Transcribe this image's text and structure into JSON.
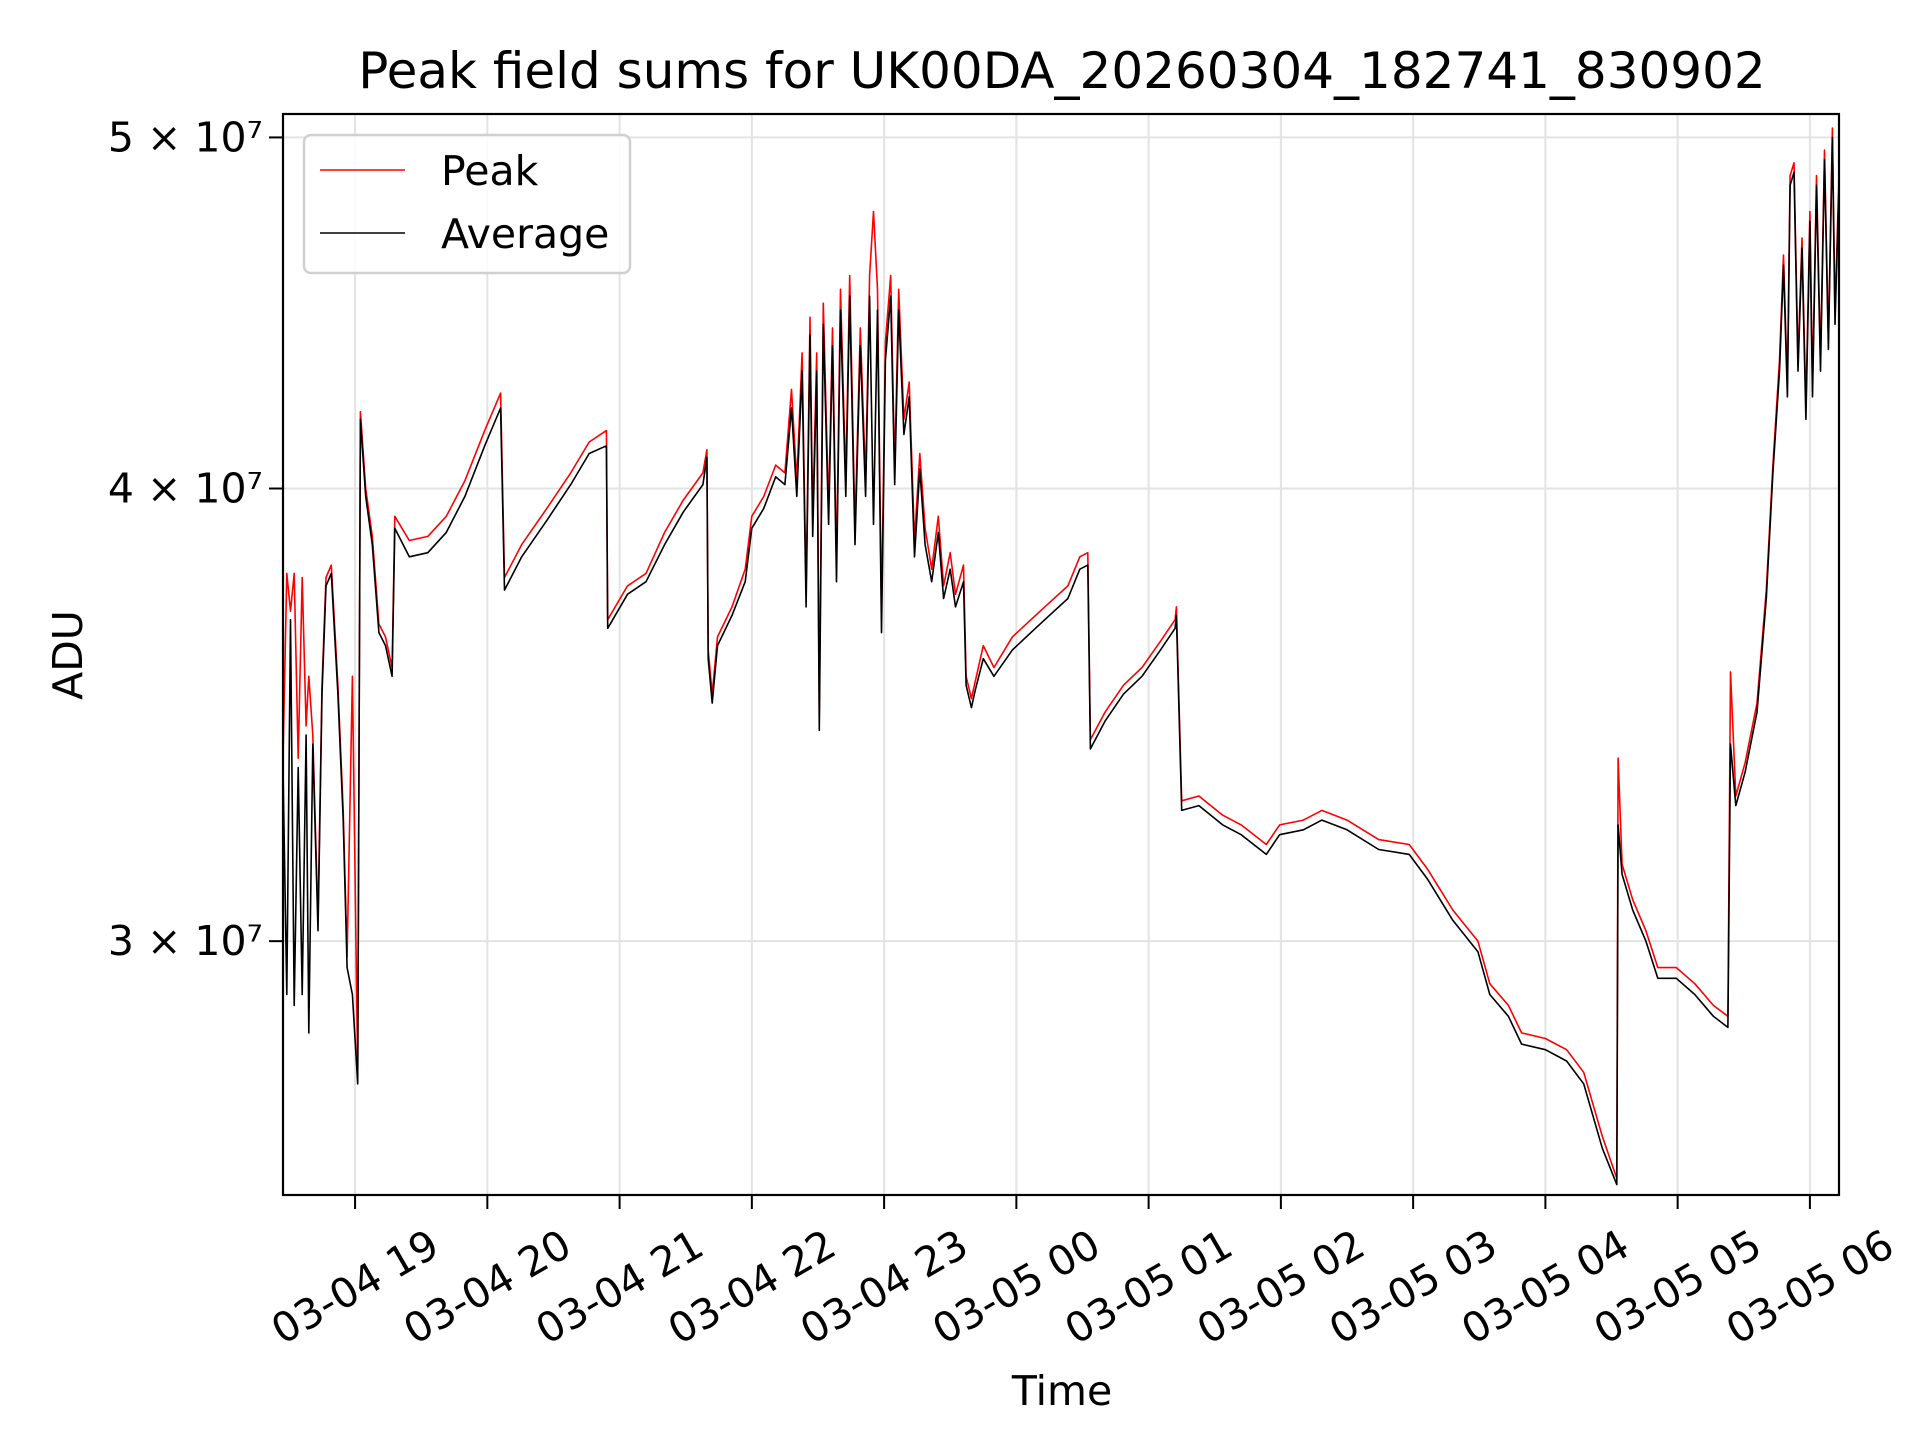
{
  "chart_data": {
    "type": "line",
    "title": "Peak field sums for UK00DA_20260304_182741_830902",
    "xlabel": "Time",
    "ylabel": "ADU",
    "yscale": "log",
    "xlim": [
      18.455,
      30.22
    ],
    "ylim": [
      25530000.0,
      50750000.0
    ],
    "grid": true,
    "legend_position": "top-left",
    "x_ticks": [
      {
        "value": 19,
        "label": "03-04 19"
      },
      {
        "value": 20,
        "label": "03-04 20"
      },
      {
        "value": 21,
        "label": "03-04 21"
      },
      {
        "value": 22,
        "label": "03-04 22"
      },
      {
        "value": 23,
        "label": "03-04 23"
      },
      {
        "value": 24,
        "label": "03-05 00"
      },
      {
        "value": 25,
        "label": "03-05 01"
      },
      {
        "value": 26,
        "label": "03-05 02"
      },
      {
        "value": 27,
        "label": "03-05 03"
      },
      {
        "value": 28,
        "label": "03-05 04"
      },
      {
        "value": 29,
        "label": "03-05 05"
      },
      {
        "value": 30,
        "label": "03-05 06"
      }
    ],
    "y_ticks": [
      {
        "value": 50000000.0,
        "label": "5 × 10⁷"
      },
      {
        "value": 40000000.0,
        "label": "4 × 10⁷"
      },
      {
        "value": 30000000.0,
        "label": "3 × 10⁷"
      }
    ],
    "x": [
      18.455,
      18.484,
      18.512,
      18.54,
      18.57,
      18.6,
      18.63,
      18.65,
      18.68,
      18.72,
      18.75,
      18.78,
      18.82,
      18.87,
      18.91,
      18.94,
      18.98,
      19.02,
      19.04,
      19.08,
      19.13,
      19.18,
      19.23,
      19.28,
      19.3,
      19.41,
      19.55,
      19.69,
      19.83,
      19.98,
      20.1,
      20.13,
      20.26,
      20.45,
      20.63,
      20.77,
      20.9,
      20.91,
      21.06,
      21.2,
      21.34,
      21.48,
      21.63,
      21.66,
      21.67,
      21.7,
      21.74,
      21.85,
      21.95,
      22.0,
      22.09,
      22.18,
      22.25,
      22.3,
      22.34,
      22.38,
      22.41,
      22.44,
      22.46,
      22.49,
      22.51,
      22.54,
      22.58,
      22.61,
      22.64,
      22.67,
      22.71,
      22.74,
      22.78,
      22.82,
      22.86,
      22.89,
      22.92,
      22.95,
      22.98,
      23.01,
      23.05,
      23.08,
      23.11,
      23.15,
      23.19,
      23.23,
      23.27,
      23.31,
      23.36,
      23.41,
      23.45,
      23.5,
      23.54,
      23.6,
      23.62,
      23.66,
      23.69,
      23.75,
      23.83,
      23.97,
      24.11,
      24.25,
      24.39,
      24.48,
      24.54,
      24.56,
      24.67,
      24.81,
      24.95,
      25.09,
      25.2,
      25.21,
      25.25,
      25.38,
      25.56,
      25.7,
      25.89,
      25.99,
      26.17,
      26.31,
      26.5,
      26.74,
      26.97,
      27.11,
      27.3,
      27.49,
      27.58,
      27.72,
      27.82,
      28.0,
      28.16,
      28.29,
      28.43,
      28.54,
      28.55,
      28.58,
      28.66,
      28.76,
      28.85,
      28.99,
      29.13,
      29.27,
      29.38,
      29.4,
      29.44,
      29.51,
      29.6,
      29.67,
      29.72,
      29.77,
      29.8,
      29.83,
      29.85,
      29.88,
      29.91,
      29.94,
      29.97,
      30.0,
      30.02,
      30.05,
      30.08,
      30.11,
      30.14,
      30.17,
      30.19,
      30.22
    ],
    "series": [
      {
        "name": "Peak",
        "color": "#ff0000",
        "values": [
          33700000.0,
          37900000.0,
          37000000.0,
          37900000.0,
          33700000.0,
          37800000.0,
          34400000.0,
          35500000.0,
          34200000.0,
          30400000.0,
          35300000.0,
          37800000.0,
          38100000.0,
          35300000.0,
          32600000.0,
          29700000.0,
          35500000.0,
          27600000.0,
          42000000.0,
          40000000.0,
          38800000.0,
          36700000.0,
          36400000.0,
          35700000.0,
          39300000.0,
          38700000.0,
          38800000.0,
          39300000.0,
          40200000.0,
          41500000.0,
          42500000.0,
          37800000.0,
          38600000.0,
          39500000.0,
          40400000.0,
          41200000.0,
          41500000.0,
          36800000.0,
          37600000.0,
          37900000.0,
          38900000.0,
          39700000.0,
          40400000.0,
          41000000.0,
          36100000.0,
          35100000.0,
          36400000.0,
          37100000.0,
          38000000.0,
          39300000.0,
          39800000.0,
          40600000.0,
          40400000.0,
          42600000.0,
          40200000.0,
          43600000.0,
          37500000.0,
          44600000.0,
          39200000.0,
          43600000.0,
          34700000.0,
          45000000.0,
          39500000.0,
          44300000.0,
          38100000.0,
          45400000.0,
          40200000.0,
          45800000.0,
          39000000.0,
          44300000.0,
          40200000.0,
          45800000.0,
          47700000.0,
          45400000.0,
          36900000.0,
          43900000.0,
          45800000.0,
          40500000.0,
          45400000.0,
          41800000.0,
          42800000.0,
          38700000.0,
          40900000.0,
          39000000.0,
          38000000.0,
          39300000.0,
          37600000.0,
          38400000.0,
          37400000.0,
          38100000.0,
          35500000.0,
          35000000.0,
          35400000.0,
          36200000.0,
          35700000.0,
          36400000.0,
          36800000.0,
          37200000.0,
          37600000.0,
          38300000.0,
          38400000.0,
          34100000.0,
          34700000.0,
          35300000.0,
          35700000.0,
          36300000.0,
          36800000.0,
          37100000.0,
          32800000.0,
          32900000.0,
          32500000.0,
          32300000.0,
          31900000.0,
          32300000.0,
          32400000.0,
          32600000.0,
          32400000.0,
          32000000.0,
          31900000.0,
          31400000.0,
          30600000.0,
          30000000.0,
          29200000.0,
          28800000.0,
          28300000.0,
          28200000.0,
          28000000.0,
          27600000.0,
          26500000.0,
          25800000.0,
          33700000.0,
          31500000.0,
          30800000.0,
          30200000.0,
          29500000.0,
          29500000.0,
          29200000.0,
          28800000.0,
          28600000.0,
          35600000.0,
          32900000.0,
          33600000.0,
          34900000.0,
          37500000.0,
          40600000.0,
          43400000.0,
          46400000.0,
          42700000.0,
          48800000.0,
          49200000.0,
          43400000.0,
          46900000.0,
          42100000.0,
          47700000.0,
          42700000.0,
          48800000.0,
          43400000.0,
          49600000.0,
          44000000.0,
          50300000.0,
          44700000.0,
          48800000.0
        ]
      },
      {
        "name": "Average",
        "color": "#000000",
        "values": [
          33500000.0,
          29000000.0,
          36800000.0,
          28800000.0,
          33500000.0,
          29000000.0,
          34200000.0,
          28300000.0,
          34000000.0,
          30200000.0,
          35100000.0,
          37600000.0,
          37900000.0,
          35100000.0,
          32400000.0,
          29500000.0,
          29000000.0,
          27400000.0,
          41800000.0,
          39800000.0,
          38600000.0,
          36500000.0,
          36200000.0,
          35500000.0,
          39000000.0,
          38300000.0,
          38400000.0,
          38900000.0,
          39800000.0,
          41100000.0,
          42100000.0,
          37500000.0,
          38300000.0,
          39200000.0,
          40100000.0,
          40900000.0,
          41100000.0,
          36600000.0,
          37400000.0,
          37700000.0,
          38600000.0,
          39400000.0,
          40100000.0,
          40800000.0,
          35900000.0,
          34900000.0,
          36200000.0,
          36900000.0,
          37700000.0,
          39000000.0,
          39500000.0,
          40300000.0,
          40100000.0,
          42100000.0,
          39800000.0,
          43100000.0,
          37100000.0,
          44100000.0,
          38800000.0,
          43100000.0,
          34300000.0,
          44400000.0,
          39100000.0,
          43800000.0,
          37700000.0,
          44800000.0,
          39800000.0,
          45200000.0,
          38600000.0,
          43800000.0,
          39800000.0,
          45200000.0,
          39100000.0,
          44800000.0,
          36500000.0,
          43400000.0,
          45200000.0,
          40100000.0,
          44800000.0,
          41400000.0,
          42400000.0,
          38300000.0,
          40500000.0,
          38600000.0,
          37700000.0,
          38900000.0,
          37300000.0,
          38000000.0,
          37100000.0,
          37700000.0,
          35300000.0,
          34800000.0,
          35200000.0,
          35900000.0,
          35500000.0,
          36100000.0,
          36500000.0,
          36900000.0,
          37300000.0,
          38000000.0,
          38100000.0,
          33900000.0,
          34500000.0,
          35100000.0,
          35500000.0,
          36100000.0,
          36600000.0,
          36900000.0,
          32600000.0,
          32700000.0,
          32300000.0,
          32100000.0,
          31700000.0,
          32100000.0,
          32200000.0,
          32400000.0,
          32200000.0,
          31800000.0,
          31700000.0,
          31200000.0,
          30400000.0,
          29800000.0,
          29000000.0,
          28600000.0,
          28100000.0,
          28000000.0,
          27800000.0,
          27400000.0,
          26300000.0,
          25700000.0,
          32300000.0,
          31300000.0,
          30600000.0,
          30000000.0,
          29300000.0,
          29300000.0,
          29000000.0,
          28600000.0,
          28400000.0,
          34000000.0,
          32700000.0,
          33400000.0,
          34700000.0,
          37300000.0,
          40400000.0,
          43100000.0,
          46100000.0,
          42400000.0,
          48500000.0,
          48900000.0,
          43100000.0,
          46600000.0,
          41800000.0,
          47400000.0,
          42400000.0,
          48500000.0,
          43100000.0,
          49300000.0,
          43700000.0,
          50000000.0,
          44400000.0,
          48500000.0
        ]
      }
    ]
  }
}
